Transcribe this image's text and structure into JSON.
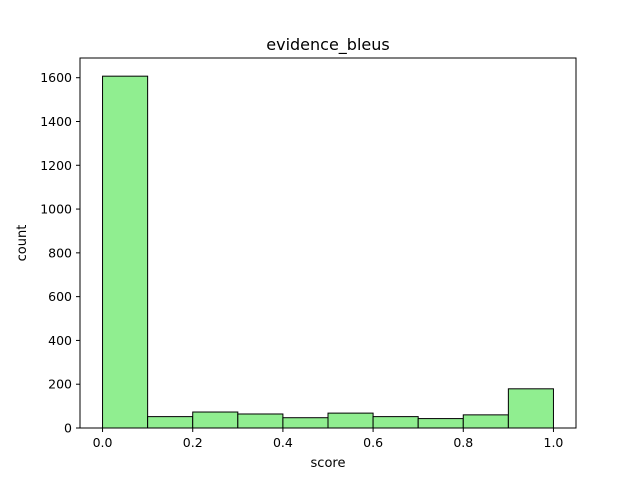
{
  "chart_data": {
    "type": "bar",
    "title": "evidence_bleus",
    "xlabel": "score",
    "ylabel": "count",
    "bins": [
      [
        0.0,
        0.1
      ],
      [
        0.1,
        0.2
      ],
      [
        0.2,
        0.3
      ],
      [
        0.3,
        0.4
      ],
      [
        0.4,
        0.5
      ],
      [
        0.5,
        0.6
      ],
      [
        0.6,
        0.7
      ],
      [
        0.7,
        0.8
      ],
      [
        0.8,
        0.9
      ],
      [
        0.9,
        1.0
      ]
    ],
    "values": [
      1607,
      52,
      73,
      64,
      47,
      68,
      52,
      43,
      60,
      179
    ],
    "xlim": [
      -0.05,
      1.05
    ],
    "ylim": [
      0,
      1690
    ],
    "xticks": [
      0.0,
      0.2,
      0.4,
      0.6,
      0.8,
      1.0
    ],
    "xtick_labels": [
      "0.0",
      "0.2",
      "0.4",
      "0.6",
      "0.8",
      "1.0"
    ],
    "yticks": [
      0,
      200,
      400,
      600,
      800,
      1000,
      1200,
      1400,
      1600
    ],
    "ytick_labels": [
      "0",
      "200",
      "400",
      "600",
      "800",
      "1000",
      "1200",
      "1400",
      "1600"
    ],
    "grid": false,
    "bar_color": "#90ee90",
    "edge_color": "#000000"
  }
}
